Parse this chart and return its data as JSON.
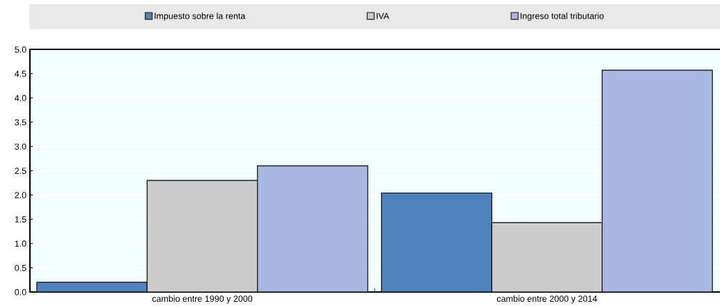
{
  "chart_data": {
    "type": "bar",
    "categories": [
      "cambio entre 1990 y 2000",
      "cambio entre 2000 y 2014"
    ],
    "series": [
      {
        "name": "Impuesto sobre la renta",
        "color": "#4f81bd",
        "values": [
          0.2,
          2.04
        ]
      },
      {
        "name": "IVA",
        "color": "#cccccc",
        "values": [
          2.3,
          1.43
        ]
      },
      {
        "name": "Ingreso total tributario",
        "color": "#a7b9e3",
        "values": [
          2.6,
          4.57
        ]
      }
    ],
    "ylim": [
      0,
      5
    ],
    "yticks": [
      {
        "value": 0,
        "label": "0.0"
      },
      {
        "value": 0.5,
        "label": "0.5"
      },
      {
        "value": 1,
        "label": "1.0"
      },
      {
        "value": 1.5,
        "label": "1.5"
      },
      {
        "value": 2,
        "label": "2.0"
      },
      {
        "value": 2.5,
        "label": "2.5"
      },
      {
        "value": 3,
        "label": "3.0"
      },
      {
        "value": 3.5,
        "label": "3.5"
      },
      {
        "value": 4,
        "label": "4.0"
      },
      {
        "value": 4.5,
        "label": "4.5"
      },
      {
        "value": 5,
        "label": "5.0"
      }
    ],
    "grid": "y",
    "legend": "top"
  }
}
